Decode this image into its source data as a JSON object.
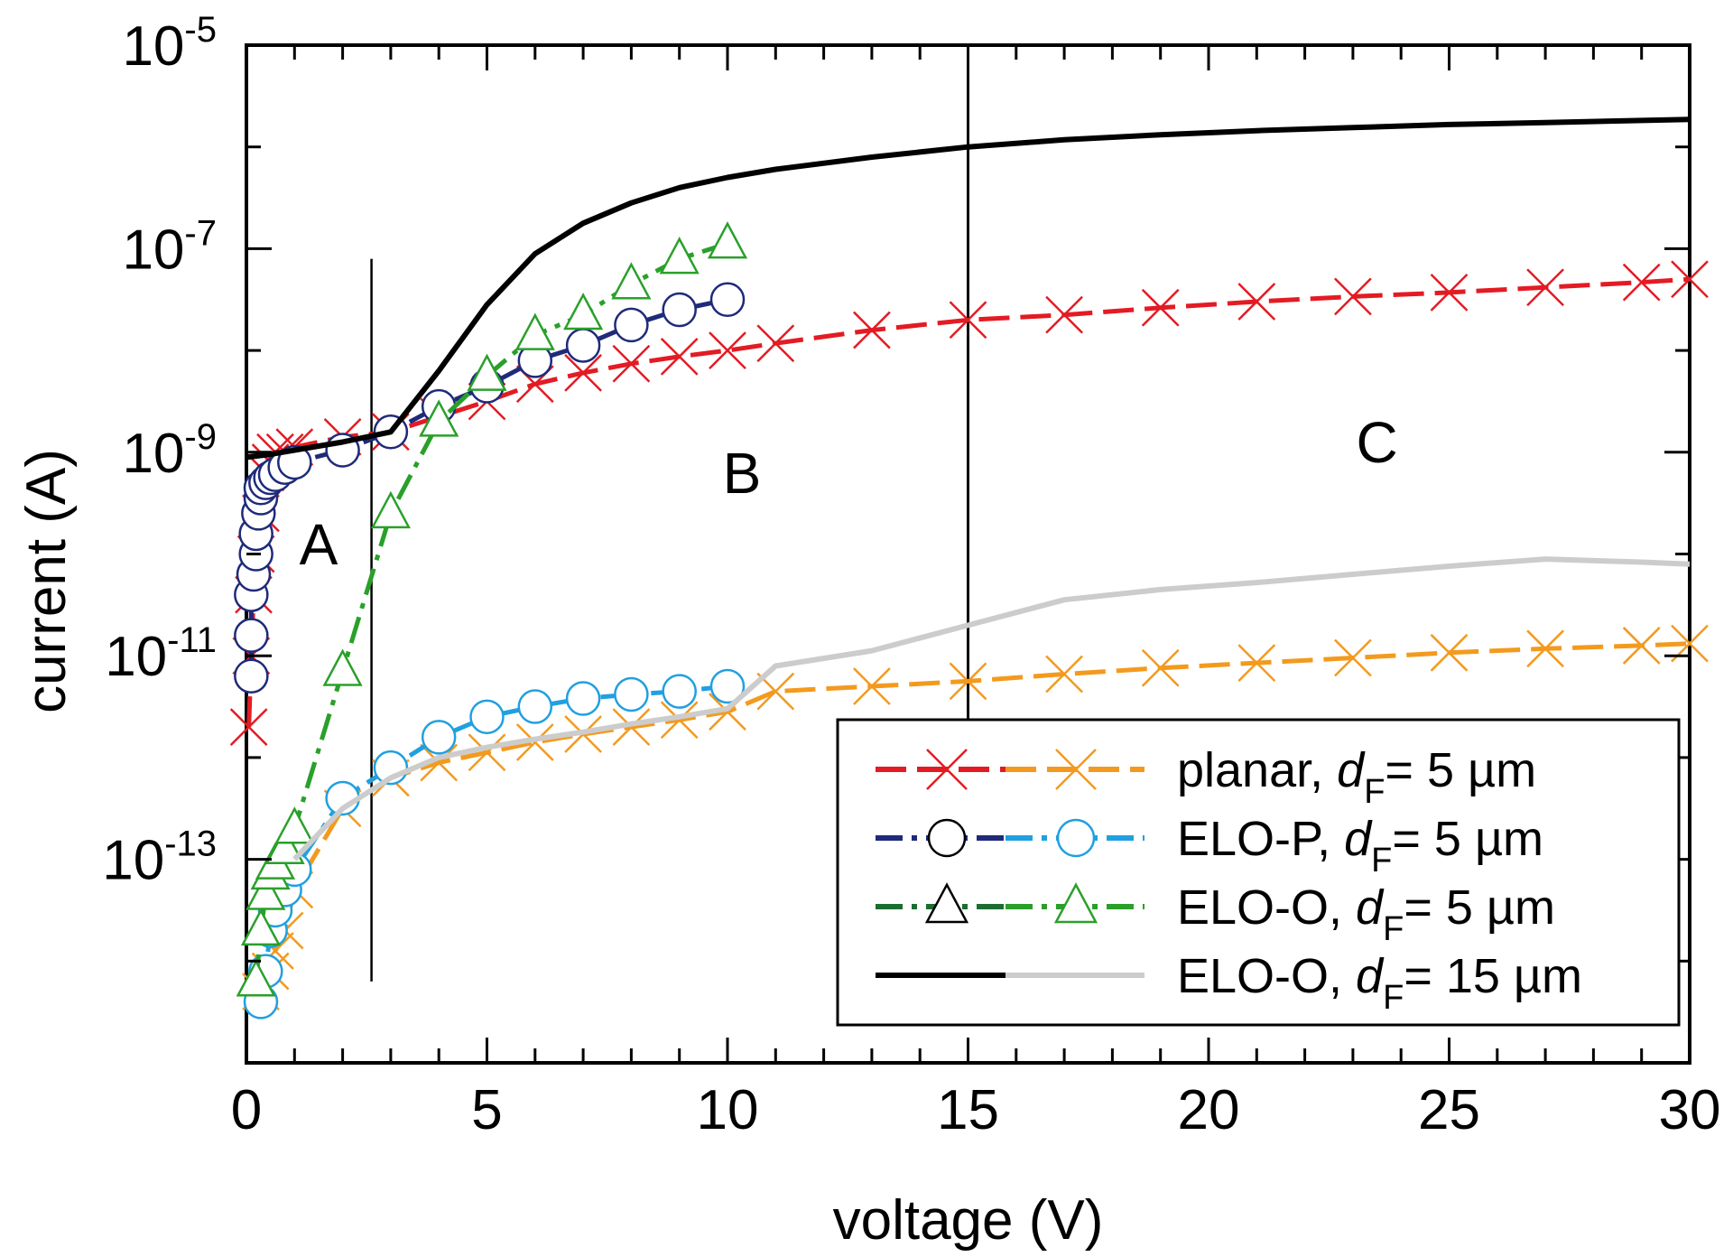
{
  "chart_data": {
    "type": "line",
    "title": "",
    "xlabel": "voltage (V)",
    "ylabel": "current (A)",
    "xlim": [
      0,
      30
    ],
    "ylim_exponent": [
      -15,
      -5
    ],
    "yscale": "log",
    "grid": false,
    "x_ticks": [
      "0",
      "5",
      "10",
      "15",
      "20",
      "25",
      "30"
    ],
    "y_ticks": [
      {
        "base": "10",
        "exp": "-5"
      },
      {
        "base": "10",
        "exp": "-7"
      },
      {
        "base": "10",
        "exp": "-9"
      },
      {
        "base": "10",
        "exp": "-11"
      },
      {
        "base": "10",
        "exp": "-13"
      }
    ],
    "region_dividers_x": [
      2.6,
      15
    ],
    "regions": [
      {
        "label": "A",
        "x": 1.5,
        "log_y": -10.1
      },
      {
        "label": "B",
        "x": 10.3,
        "log_y": -9.4
      },
      {
        "label": "C",
        "x": 23.5,
        "log_y": -9.1
      }
    ],
    "legend": {
      "position": "lower-right",
      "entries": [
        {
          "prefix": "planar, ",
          "var": "d",
          "sub": "F",
          "suffix": "= 5 µm",
          "colors": [
            "#e31b23",
            "#f39a1e"
          ],
          "marker": "x",
          "dash": "dash"
        },
        {
          "prefix": "ELO-P, ",
          "var": "d",
          "sub": "F",
          "suffix": "= 5 µm",
          "colors": [
            "#1f2a7a",
            "#20a0e0"
          ],
          "marker": "circle",
          "dash": "dashdot"
        },
        {
          "prefix": "ELO-O, ",
          "var": "d",
          "sub": "F",
          "suffix": "= 5 µm",
          "colors": [
            "#1b6e30",
            "#2aa02a"
          ],
          "marker": "triangle",
          "dash": "dashdot"
        },
        {
          "prefix": "ELO-O, ",
          "var": "d",
          "sub": "F",
          "suffix": "= 15 µm",
          "colors": [
            "#000000",
            "#cccccc"
          ],
          "marker": "none",
          "dash": "solid"
        }
      ]
    },
    "series": [
      {
        "color": "#e31b23",
        "marker": "x",
        "dash": "dash",
        "x": [
          0.05,
          0.1,
          0.15,
          0.2,
          0.3,
          0.4,
          0.5,
          0.6,
          0.8,
          1,
          2,
          3,
          4,
          5,
          6,
          7,
          8,
          9,
          10,
          11,
          13,
          15,
          17,
          19,
          21,
          23,
          25,
          27,
          29,
          30
        ],
        "log_y": [
          -11.7,
          -11.0,
          -10.4,
          -10.0,
          -9.6,
          -9.2,
          -9.1,
          -9.0,
          -9.0,
          -8.95,
          -8.85,
          -8.8,
          -8.65,
          -8.5,
          -8.33,
          -8.22,
          -8.13,
          -8.06,
          -8.0,
          -7.93,
          -7.8,
          -7.7,
          -7.65,
          -7.58,
          -7.52,
          -7.47,
          -7.43,
          -7.38,
          -7.33,
          -7.3
        ]
      },
      {
        "color": "#f39a1e",
        "marker": "x",
        "dash": "dash",
        "x": [
          0.3,
          0.5,
          0.6,
          0.8,
          1,
          2,
          3,
          4,
          5,
          6,
          7,
          8,
          9,
          10,
          11,
          13,
          15,
          17,
          19,
          21,
          23,
          25,
          27,
          29,
          30
        ],
        "log_y": [
          -14.3,
          -14.1,
          -13.9,
          -13.7,
          -13.3,
          -12.5,
          -12.2,
          -12.05,
          -11.95,
          -11.85,
          -11.77,
          -11.7,
          -11.63,
          -11.55,
          -11.35,
          -11.3,
          -11.25,
          -11.18,
          -11.12,
          -11.07,
          -11.02,
          -10.97,
          -10.93,
          -10.9,
          -10.88
        ]
      },
      {
        "color": "#1f2a7a",
        "marker": "circle",
        "dash": "dashdot",
        "x": [
          0.1,
          0.1,
          0.1,
          0.15,
          0.2,
          0.2,
          0.25,
          0.3,
          0.3,
          0.4,
          0.5,
          0.6,
          0.8,
          1,
          2,
          3,
          4,
          5,
          6,
          7,
          8,
          9,
          10
        ],
        "log_y": [
          -11.2,
          -10.8,
          -10.4,
          -10.2,
          -10.0,
          -9.8,
          -9.6,
          -9.45,
          -9.35,
          -9.3,
          -9.25,
          -9.22,
          -9.15,
          -9.1,
          -8.98,
          -8.8,
          -8.55,
          -8.35,
          -8.1,
          -7.95,
          -7.75,
          -7.6,
          -7.5
        ]
      },
      {
        "color": "#20a0e0",
        "marker": "circle",
        "dash": "dashdot",
        "x": [
          0.3,
          0.4,
          0.5,
          0.6,
          0.8,
          1,
          2,
          3,
          4,
          5,
          6,
          7,
          8,
          9,
          10
        ],
        "log_y": [
          -14.4,
          -14.1,
          -13.7,
          -13.5,
          -13.3,
          -13.1,
          -12.4,
          -12.1,
          -11.8,
          -11.6,
          -11.5,
          -11.42,
          -11.38,
          -11.35,
          -11.3
        ]
      },
      {
        "color": "#2aa02a",
        "marker": "triangle",
        "dash": "dashdot",
        "x": [
          0.2,
          0.3,
          0.4,
          0.5,
          0.6,
          0.8,
          1,
          2,
          3,
          4,
          5,
          6,
          7,
          8,
          9,
          10
        ],
        "log_y": [
          -14.2,
          -13.7,
          -13.35,
          -13.15,
          -13.05,
          -12.9,
          -12.7,
          -11.15,
          -9.6,
          -8.7,
          -8.25,
          -7.85,
          -7.65,
          -7.35,
          -7.1,
          -6.95
        ]
      },
      {
        "color": "#000000",
        "marker": "none",
        "dash": "solid",
        "x": [
          0,
          0.5,
          1,
          2,
          3,
          4,
          5,
          6,
          7,
          8,
          9,
          10,
          11,
          13,
          15,
          17,
          19,
          21,
          23,
          25,
          27,
          29,
          30
        ],
        "log_y": [
          -9.05,
          -9.02,
          -8.98,
          -8.9,
          -8.8,
          -8.2,
          -7.55,
          -7.05,
          -6.75,
          -6.55,
          -6.4,
          -6.3,
          -6.22,
          -6.1,
          -6.0,
          -5.93,
          -5.88,
          -5.84,
          -5.81,
          -5.78,
          -5.76,
          -5.74,
          -5.73
        ]
      },
      {
        "color": "#cccccc",
        "marker": "none",
        "dash": "solid",
        "x": [
          1,
          2,
          3,
          4,
          5,
          6,
          7,
          8,
          9,
          10,
          11,
          13,
          15,
          17,
          19,
          21,
          23,
          25,
          27,
          29,
          30
        ],
        "log_y": [
          -13.0,
          -12.5,
          -12.2,
          -12.0,
          -11.9,
          -11.82,
          -11.75,
          -11.67,
          -11.6,
          -11.52,
          -11.1,
          -10.95,
          -10.7,
          -10.45,
          -10.35,
          -10.28,
          -10.2,
          -10.12,
          -10.05,
          -10.08,
          -10.1
        ]
      }
    ]
  }
}
